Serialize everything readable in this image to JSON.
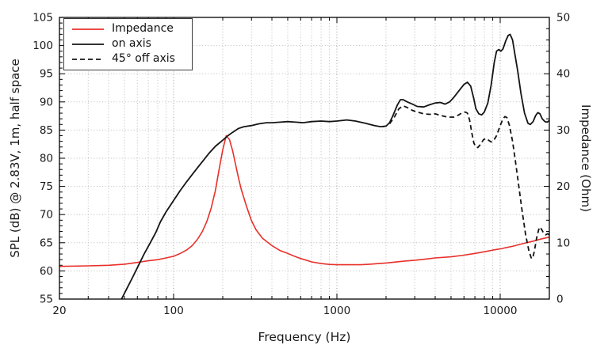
{
  "chart_data": {
    "type": "line",
    "title": "",
    "xlabel": "Frequency (Hz)",
    "ylabel_left": "SPL (dB) @ 2.83V, 1m, half space",
    "ylabel_right": "Impedance (Ohm)",
    "x_scale": "log",
    "xlim": [
      20,
      20000
    ],
    "ylim_left": [
      55,
      105
    ],
    "ylim_right": [
      0,
      50
    ],
    "x_ticks": [
      20,
      100,
      1000,
      10000
    ],
    "y_ticks_left": [
      55,
      60,
      65,
      70,
      75,
      80,
      85,
      90,
      95,
      100,
      105
    ],
    "y_ticks_right": [
      0,
      10,
      20,
      30,
      40,
      50
    ],
    "grid": true,
    "legend_position": "top-left",
    "colors": {
      "background": "#ffffff",
      "grid_minor": "#bbbbbb",
      "grid_major": "#999999",
      "axis": "#000000",
      "text": "#1a1a1a"
    },
    "series": [
      {
        "name": "Impedance",
        "axis": "right",
        "units": "Ohm",
        "color": "#e8302a",
        "style": "solid",
        "points": [
          [
            20,
            5.8
          ],
          [
            30,
            5.9
          ],
          [
            40,
            6.0
          ],
          [
            50,
            6.2
          ],
          [
            60,
            6.5
          ],
          [
            70,
            6.8
          ],
          [
            80,
            7.0
          ],
          [
            90,
            7.3
          ],
          [
            100,
            7.6
          ],
          [
            110,
            8.1
          ],
          [
            120,
            8.7
          ],
          [
            130,
            9.5
          ],
          [
            140,
            10.6
          ],
          [
            150,
            12.0
          ],
          [
            160,
            13.8
          ],
          [
            170,
            16.2
          ],
          [
            180,
            19.2
          ],
          [
            190,
            23.0
          ],
          [
            200,
            26.5
          ],
          [
            210,
            29.0
          ],
          [
            220,
            28.3
          ],
          [
            230,
            26.3
          ],
          [
            240,
            23.8
          ],
          [
            250,
            21.4
          ],
          [
            260,
            19.4
          ],
          [
            280,
            16.4
          ],
          [
            300,
            13.9
          ],
          [
            320,
            12.3
          ],
          [
            350,
            10.8
          ],
          [
            400,
            9.5
          ],
          [
            450,
            8.6
          ],
          [
            500,
            8.1
          ],
          [
            550,
            7.6
          ],
          [
            600,
            7.2
          ],
          [
            700,
            6.6
          ],
          [
            800,
            6.3
          ],
          [
            900,
            6.15
          ],
          [
            1000,
            6.1
          ],
          [
            1200,
            6.1
          ],
          [
            1400,
            6.1
          ],
          [
            1600,
            6.2
          ],
          [
            1800,
            6.3
          ],
          [
            2000,
            6.4
          ],
          [
            2500,
            6.7
          ],
          [
            3000,
            6.9
          ],
          [
            3500,
            7.1
          ],
          [
            4000,
            7.3
          ],
          [
            5000,
            7.5
          ],
          [
            6000,
            7.8
          ],
          [
            7000,
            8.1
          ],
          [
            8000,
            8.4
          ],
          [
            9000,
            8.7
          ],
          [
            10000,
            8.9
          ],
          [
            12000,
            9.4
          ],
          [
            14000,
            9.9
          ],
          [
            16000,
            10.3
          ],
          [
            18000,
            10.7
          ],
          [
            20000,
            11.0
          ]
        ]
      },
      {
        "name": "on axis",
        "axis": "left",
        "units": "dB",
        "color": "#141414",
        "style": "solid",
        "points": [
          [
            48,
            55.0
          ],
          [
            52,
            57.0
          ],
          [
            56,
            58.8
          ],
          [
            61,
            61.0
          ],
          [
            66,
            63.0
          ],
          [
            72,
            65.0
          ],
          [
            78,
            66.9
          ],
          [
            83,
            68.7
          ],
          [
            90,
            70.5
          ],
          [
            100,
            72.5
          ],
          [
            110,
            74.3
          ],
          [
            120,
            75.8
          ],
          [
            130,
            77.1
          ],
          [
            140,
            78.3
          ],
          [
            150,
            79.4
          ],
          [
            165,
            80.9
          ],
          [
            180,
            82.1
          ],
          [
            200,
            83.2
          ],
          [
            215,
            84.0
          ],
          [
            230,
            84.6
          ],
          [
            250,
            85.3
          ],
          [
            270,
            85.6
          ],
          [
            300,
            85.8
          ],
          [
            330,
            86.1
          ],
          [
            370,
            86.3
          ],
          [
            400,
            86.3
          ],
          [
            450,
            86.4
          ],
          [
            500,
            86.5
          ],
          [
            560,
            86.4
          ],
          [
            620,
            86.3
          ],
          [
            700,
            86.5
          ],
          [
            800,
            86.6
          ],
          [
            900,
            86.5
          ],
          [
            1000,
            86.6
          ],
          [
            1150,
            86.8
          ],
          [
            1300,
            86.6
          ],
          [
            1500,
            86.2
          ],
          [
            1700,
            85.8
          ],
          [
            1850,
            85.6
          ],
          [
            2000,
            85.7
          ],
          [
            2100,
            86.3
          ],
          [
            2200,
            87.5
          ],
          [
            2350,
            89.5
          ],
          [
            2450,
            90.4
          ],
          [
            2550,
            90.4
          ],
          [
            2700,
            90.0
          ],
          [
            2900,
            89.6
          ],
          [
            3100,
            89.2
          ],
          [
            3400,
            89.1
          ],
          [
            3700,
            89.5
          ],
          [
            4000,
            89.8
          ],
          [
            4300,
            89.9
          ],
          [
            4600,
            89.6
          ],
          [
            4900,
            90.0
          ],
          [
            5200,
            90.8
          ],
          [
            5600,
            92.0
          ],
          [
            6000,
            93.1
          ],
          [
            6300,
            93.5
          ],
          [
            6600,
            92.8
          ],
          [
            6900,
            90.5
          ],
          [
            7100,
            88.8
          ],
          [
            7400,
            87.9
          ],
          [
            7700,
            87.7
          ],
          [
            8000,
            88.2
          ],
          [
            8400,
            89.8
          ],
          [
            8800,
            93.0
          ],
          [
            9200,
            97.0
          ],
          [
            9500,
            99.0
          ],
          [
            9800,
            99.3
          ],
          [
            10100,
            99.0
          ],
          [
            10400,
            99.4
          ],
          [
            10800,
            100.8
          ],
          [
            11200,
            101.8
          ],
          [
            11500,
            102.0
          ],
          [
            11900,
            101.0
          ],
          [
            12300,
            98.5
          ],
          [
            12800,
            95.5
          ],
          [
            13400,
            91.5
          ],
          [
            14100,
            88.0
          ],
          [
            14800,
            86.2
          ],
          [
            15300,
            86.0
          ],
          [
            15900,
            86.5
          ],
          [
            16500,
            87.6
          ],
          [
            17000,
            88.1
          ],
          [
            17500,
            87.9
          ],
          [
            18100,
            87.0
          ],
          [
            18800,
            86.5
          ],
          [
            19400,
            86.4
          ],
          [
            20000,
            86.7
          ]
        ]
      },
      {
        "name": "45° off axis",
        "axis": "left",
        "units": "dB",
        "color": "#141414",
        "style": "dashed",
        "points": [
          [
            1900,
            85.6
          ],
          [
            2000,
            85.7
          ],
          [
            2100,
            86.1
          ],
          [
            2250,
            87.3
          ],
          [
            2400,
            88.8
          ],
          [
            2550,
            89.3
          ],
          [
            2700,
            89.0
          ],
          [
            2900,
            88.5
          ],
          [
            3100,
            88.2
          ],
          [
            3400,
            87.9
          ],
          [
            3700,
            87.8
          ],
          [
            4000,
            87.9
          ],
          [
            4300,
            87.6
          ],
          [
            4600,
            87.4
          ],
          [
            4900,
            87.3
          ],
          [
            5200,
            87.3
          ],
          [
            5500,
            87.6
          ],
          [
            5800,
            88.0
          ],
          [
            6100,
            88.2
          ],
          [
            6300,
            88.0
          ],
          [
            6500,
            86.8
          ],
          [
            6700,
            84.5
          ],
          [
            6900,
            82.7
          ],
          [
            7100,
            82.0
          ],
          [
            7300,
            81.9
          ],
          [
            7600,
            82.5
          ],
          [
            7900,
            83.3
          ],
          [
            8200,
            83.5
          ],
          [
            8500,
            83.2
          ],
          [
            8800,
            82.9
          ],
          [
            9100,
            83.1
          ],
          [
            9500,
            84.0
          ],
          [
            10000,
            85.8
          ],
          [
            10400,
            87.0
          ],
          [
            10700,
            87.4
          ],
          [
            11000,
            87.2
          ],
          [
            11400,
            85.8
          ],
          [
            11900,
            83.0
          ],
          [
            12400,
            79.5
          ],
          [
            13000,
            75.0
          ],
          [
            13600,
            70.8
          ],
          [
            14300,
            66.5
          ],
          [
            15000,
            63.5
          ],
          [
            15500,
            62.3
          ],
          [
            15800,
            62.2
          ],
          [
            16200,
            63.5
          ],
          [
            16700,
            65.8
          ],
          [
            17200,
            67.3
          ],
          [
            17500,
            67.8
          ],
          [
            17900,
            67.4
          ],
          [
            18400,
            66.8
          ],
          [
            19000,
            66.4
          ],
          [
            19500,
            66.6
          ],
          [
            20000,
            66.4
          ]
        ]
      }
    ]
  }
}
